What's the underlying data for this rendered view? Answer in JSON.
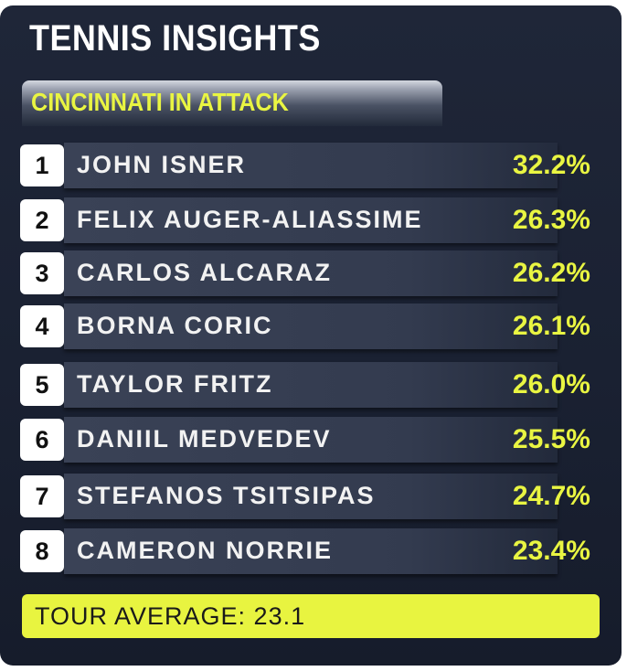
{
  "header": {
    "title": "TENNIS INSIGHTS",
    "subtitle": "CINCINNATI IN ATTACK"
  },
  "colors": {
    "background": "#1c2334",
    "accent": "#e9f542",
    "row": "#363e52"
  },
  "rankings": [
    {
      "rank": "1",
      "name": "JOHN ISNER",
      "value": "32.2%"
    },
    {
      "rank": "2",
      "name": "FELIX AUGER-ALIASSIME",
      "value": "26.3%"
    },
    {
      "rank": "3",
      "name": "CARLOS ALCARAZ",
      "value": "26.2%"
    },
    {
      "rank": "4",
      "name": "BORNA CORIC",
      "value": "26.1%"
    },
    {
      "rank": "5",
      "name": "TAYLOR FRITZ",
      "value": "26.0%"
    },
    {
      "rank": "6",
      "name": "DANIIL MEDVEDEV",
      "value": "25.5%"
    },
    {
      "rank": "7",
      "name": "STEFANOS TSITSIPAS",
      "value": "24.7%"
    },
    {
      "rank": "8",
      "name": "CAMERON NORRIE",
      "value": "23.4%"
    }
  ],
  "footer": {
    "label": "TOUR AVERAGE: 23.1"
  }
}
